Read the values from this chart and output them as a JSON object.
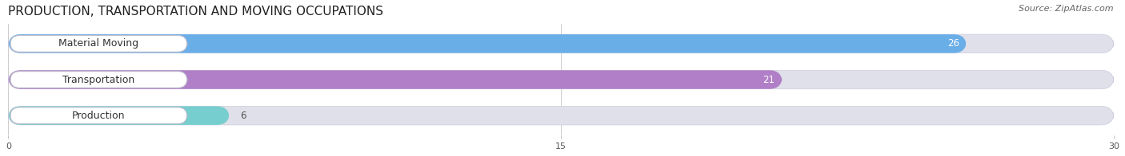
{
  "title": "PRODUCTION, TRANSPORTATION AND MOVING OCCUPATIONS",
  "source_text": "Source: ZipAtlas.com",
  "categories": [
    "Material Moving",
    "Transportation",
    "Production"
  ],
  "values": [
    26,
    21,
    6
  ],
  "bar_colors": [
    "#6aaee8",
    "#b07fc7",
    "#76cece"
  ],
  "bar_bg_color": "#e0e0ea",
  "xlim": [
    0,
    30
  ],
  "xticks": [
    0,
    15,
    30
  ],
  "title_fontsize": 11,
  "label_fontsize": 9,
  "value_fontsize": 8.5,
  "source_fontsize": 8,
  "bar_height": 0.52,
  "background_color": "#ffffff"
}
